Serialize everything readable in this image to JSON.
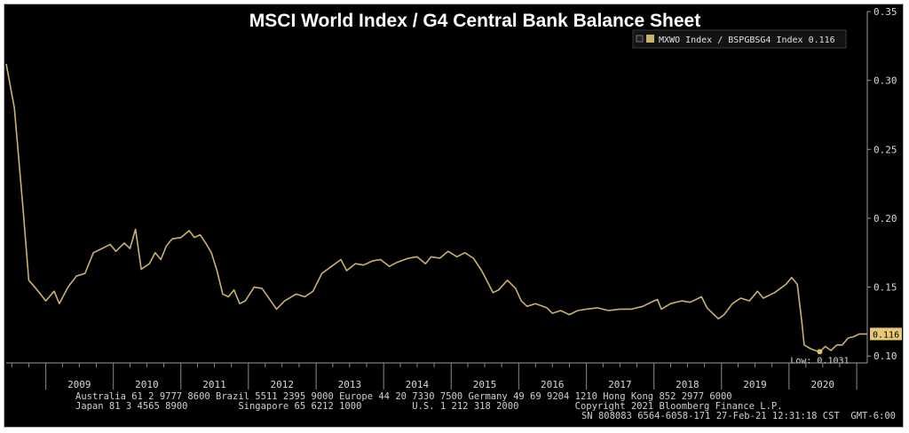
{
  "chart_data": {
    "type": "line",
    "title": "MSCI World Index / G4 Central Bank Balance Sheet",
    "xlabel": "",
    "ylabel": "",
    "ylim": [
      0.095,
      0.35
    ],
    "xlim": [
      "2008-06-01",
      "2021-02-27"
    ],
    "y_ticks": [
      "0.35",
      "0.30",
      "0.25",
      "0.20",
      "0.15",
      "0.10"
    ],
    "x_ticks": [
      "2009",
      "2010",
      "2011",
      "2012",
      "2013",
      "2014",
      "2015",
      "2016",
      "2017",
      "2018",
      "2019",
      "2020"
    ],
    "grid": false,
    "legend_position": "top-right",
    "line_color": "#cbb26a",
    "series": [
      {
        "name": "MXWO Index / BSPGBSG4 Index",
        "legend_label": "MXWO Index / BSPGBSG4 Index 0.116",
        "color": "#cbb26a",
        "points": [
          [
            "2008-06-01",
            0.312
          ],
          [
            "2008-07-15",
            0.28
          ],
          [
            "2008-09-01",
            0.205
          ],
          [
            "2008-10-01",
            0.155
          ],
          [
            "2008-11-15",
            0.148
          ],
          [
            "2009-01-01",
            0.14
          ],
          [
            "2009-02-15",
            0.147
          ],
          [
            "2009-03-15",
            0.138
          ],
          [
            "2009-05-01",
            0.15
          ],
          [
            "2009-06-15",
            0.158
          ],
          [
            "2009-08-01",
            0.16
          ],
          [
            "2009-09-15",
            0.175
          ],
          [
            "2009-11-01",
            0.178
          ],
          [
            "2009-12-15",
            0.181
          ],
          [
            "2010-01-15",
            0.176
          ],
          [
            "2010-03-01",
            0.182
          ],
          [
            "2010-04-01",
            0.178
          ],
          [
            "2010-05-01",
            0.192
          ],
          [
            "2010-06-01",
            0.163
          ],
          [
            "2010-07-15",
            0.167
          ],
          [
            "2010-08-15",
            0.175
          ],
          [
            "2010-09-15",
            0.17
          ],
          [
            "2010-10-15",
            0.18
          ],
          [
            "2010-11-15",
            0.185
          ],
          [
            "2011-01-01",
            0.186
          ],
          [
            "2011-02-15",
            0.191
          ],
          [
            "2011-03-15",
            0.186
          ],
          [
            "2011-04-15",
            0.188
          ],
          [
            "2011-05-15",
            0.182
          ],
          [
            "2011-06-15",
            0.175
          ],
          [
            "2011-07-15",
            0.162
          ],
          [
            "2011-08-15",
            0.145
          ],
          [
            "2011-09-15",
            0.143
          ],
          [
            "2011-10-15",
            0.148
          ],
          [
            "2011-11-15",
            0.138
          ],
          [
            "2011-12-15",
            0.14
          ],
          [
            "2012-02-01",
            0.15
          ],
          [
            "2012-03-15",
            0.149
          ],
          [
            "2012-05-01",
            0.14
          ],
          [
            "2012-06-01",
            0.134
          ],
          [
            "2012-07-15",
            0.14
          ],
          [
            "2012-09-15",
            0.145
          ],
          [
            "2012-11-01",
            0.143
          ],
          [
            "2012-12-15",
            0.147
          ],
          [
            "2013-02-01",
            0.16
          ],
          [
            "2013-03-15",
            0.164
          ],
          [
            "2013-05-15",
            0.17
          ],
          [
            "2013-06-15",
            0.162
          ],
          [
            "2013-08-01",
            0.167
          ],
          [
            "2013-09-15",
            0.166
          ],
          [
            "2013-11-01",
            0.169
          ],
          [
            "2013-12-15",
            0.17
          ],
          [
            "2014-02-01",
            0.165
          ],
          [
            "2014-03-15",
            0.168
          ],
          [
            "2014-05-15",
            0.171
          ],
          [
            "2014-07-01",
            0.172
          ],
          [
            "2014-08-15",
            0.167
          ],
          [
            "2014-09-15",
            0.172
          ],
          [
            "2014-11-01",
            0.171
          ],
          [
            "2014-12-15",
            0.176
          ],
          [
            "2015-02-01",
            0.172
          ],
          [
            "2015-03-15",
            0.175
          ],
          [
            "2015-05-01",
            0.171
          ],
          [
            "2015-06-15",
            0.162
          ],
          [
            "2015-08-15",
            0.146
          ],
          [
            "2015-09-15",
            0.148
          ],
          [
            "2015-11-01",
            0.155
          ],
          [
            "2015-12-15",
            0.149
          ],
          [
            "2016-01-15",
            0.14
          ],
          [
            "2016-02-15",
            0.136
          ],
          [
            "2016-04-01",
            0.138
          ],
          [
            "2016-06-01",
            0.135
          ],
          [
            "2016-07-01",
            0.131
          ],
          [
            "2016-08-15",
            0.133
          ],
          [
            "2016-10-01",
            0.13
          ],
          [
            "2016-11-15",
            0.133
          ],
          [
            "2017-01-01",
            0.134
          ],
          [
            "2017-03-01",
            0.135
          ],
          [
            "2017-05-01",
            0.133
          ],
          [
            "2017-07-01",
            0.134
          ],
          [
            "2017-09-01",
            0.134
          ],
          [
            "2017-11-01",
            0.136
          ],
          [
            "2018-01-01",
            0.14
          ],
          [
            "2018-01-20",
            0.141
          ],
          [
            "2018-02-10",
            0.134
          ],
          [
            "2018-04-01",
            0.138
          ],
          [
            "2018-06-01",
            0.14
          ],
          [
            "2018-07-15",
            0.139
          ],
          [
            "2018-09-15",
            0.143
          ],
          [
            "2018-10-15",
            0.135
          ],
          [
            "2018-12-15",
            0.127
          ],
          [
            "2019-01-15",
            0.13
          ],
          [
            "2019-03-01",
            0.138
          ],
          [
            "2019-04-15",
            0.142
          ],
          [
            "2019-06-01",
            0.14
          ],
          [
            "2019-07-15",
            0.147
          ],
          [
            "2019-08-15",
            0.142
          ],
          [
            "2019-10-15",
            0.146
          ],
          [
            "2019-12-15",
            0.152
          ],
          [
            "2020-01-15",
            0.157
          ],
          [
            "2020-02-15",
            0.152
          ],
          [
            "2020-03-10",
            0.125
          ],
          [
            "2020-03-23",
            0.108
          ],
          [
            "2020-05-01",
            0.105
          ],
          [
            "2020-06-15",
            0.103
          ],
          [
            "2020-07-15",
            0.107
          ],
          [
            "2020-08-15",
            0.104
          ],
          [
            "2020-09-15",
            0.108
          ],
          [
            "2020-10-15",
            0.108
          ],
          [
            "2020-11-15",
            0.113
          ],
          [
            "2020-12-15",
            0.114
          ],
          [
            "2021-01-15",
            0.116
          ],
          [
            "2021-02-26",
            0.116
          ]
        ]
      }
    ],
    "annotations": [
      {
        "text": "Low: 0.1031",
        "x": "2020-06-15",
        "y": 0.1031
      }
    ],
    "last_value": "0.116",
    "footer_lines": [
      "Australia 61 2 9777 8600 Brazil 5511 2395 9000 Europe 44 20 7330 7500 Germany 49 69 9204 1210 Hong Kong 852 2977 6000",
      "Japan 81 3 4565 8900         Singapore 65 6212 1000         U.S. 1 212 318 2000          Copyright 2021 Bloomberg Finance L.P.",
      "SN 808083 6564-6058-171 27-Feb-21 12:31:18 CST  GMT-6:00"
    ]
  }
}
